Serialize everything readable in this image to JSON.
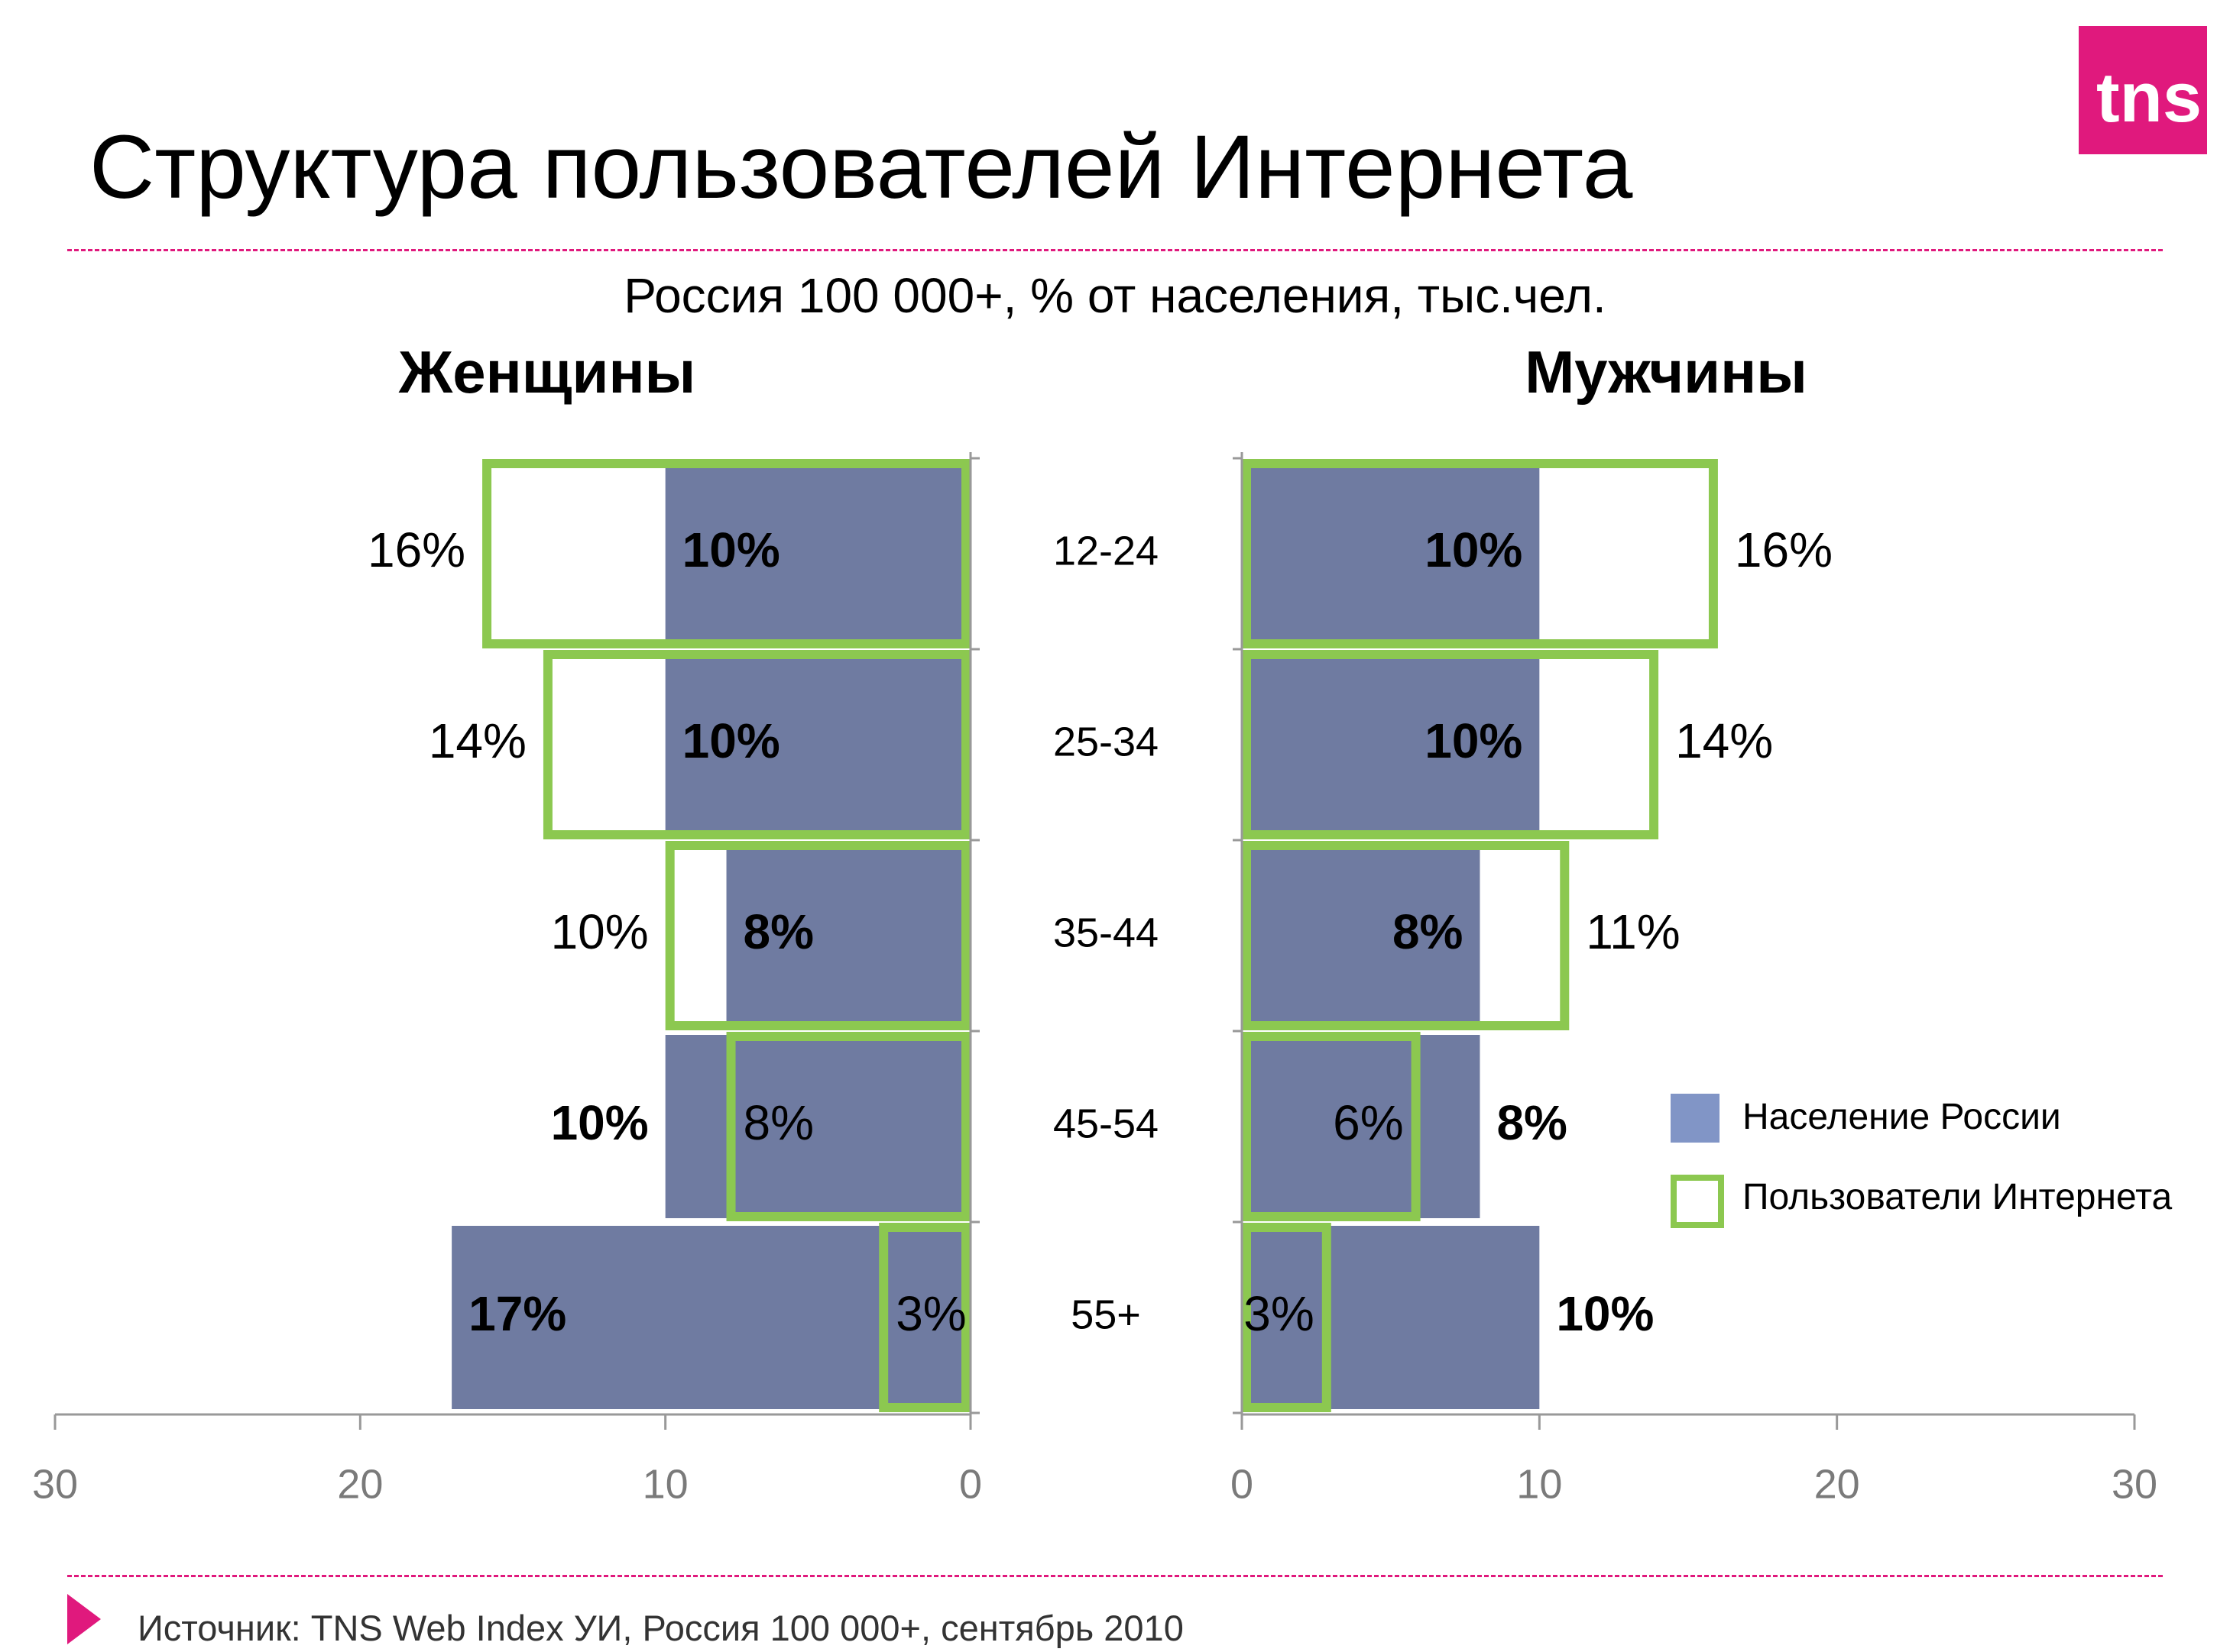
{
  "title": "Структура пользователей Интернета",
  "logo_text": "tns",
  "colors": {
    "accent": "#e0197d",
    "population": "#6f7ba1",
    "internet": "#8cc850",
    "legend_population": "#8195c6"
  },
  "source": "Источник: TNS Web Index УИ, Россия 100 000+, сентябрь 2010",
  "legend": {
    "population": "Население России",
    "internet": "Пользователи Интернета"
  },
  "chart_data": {
    "type": "bar",
    "subtitle": "Россия 100 000+, % от населения, тыс.чел.",
    "categories": [
      "12-24",
      "25-34",
      "35-44",
      "45-54",
      "55+"
    ],
    "xlim": [
      0,
      30
    ],
    "x_ticks": [
      "30",
      "20",
      "10",
      "0",
      "0",
      "10",
      "20",
      "30"
    ],
    "women": {
      "title": "Женщины",
      "series": [
        {
          "name": "Население России",
          "values": [
            10,
            10,
            8,
            10,
            17
          ],
          "labels": [
            "10%",
            "10%",
            "8%",
            "10%",
            "17%"
          ]
        },
        {
          "name": "Пользователи Интернета",
          "values": [
            16,
            14,
            10,
            8,
            3
          ],
          "labels": [
            "16%",
            "14%",
            "10%",
            "8%",
            "3%"
          ]
        }
      ]
    },
    "men": {
      "title": "Мужчины",
      "series": [
        {
          "name": "Население России",
          "values": [
            10,
            10,
            8,
            8,
            10
          ],
          "labels": [
            "10%",
            "10%",
            "8%",
            "8%",
            "10%"
          ]
        },
        {
          "name": "Пользователи Интернета",
          "values": [
            16,
            14,
            11,
            6,
            3
          ],
          "labels": [
            "16%",
            "14%",
            "11%",
            "6%",
            "3%"
          ]
        }
      ]
    }
  }
}
